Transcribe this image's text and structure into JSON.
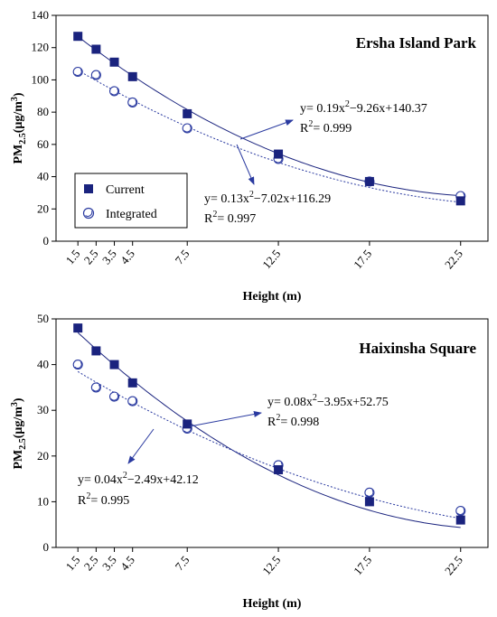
{
  "chart_data": [
    {
      "type": "scatter",
      "title": "Ersha Island Park",
      "xlabel": "Height (m)",
      "ylabel_main": "PM",
      "ylabel_sub": "2.5",
      "ylabel_unit": "(μg/m",
      "ylabel_sup": "3",
      "ylabel_close": ")",
      "xticks": [
        "1.5",
        "2.5",
        "3.5",
        "4.5",
        "7.5",
        "12.5",
        "17.5",
        "22.5"
      ],
      "ylim": [
        0,
        140
      ],
      "yticks": [
        "0",
        "20",
        "40",
        "60",
        "80",
        "100",
        "120",
        "140"
      ],
      "legend": {
        "current": "Current",
        "integrated": "Integrated"
      },
      "series": [
        {
          "name": "Current",
          "x": [
            1.5,
            2.5,
            3.5,
            4.5,
            7.5,
            12.5,
            17.5,
            22.5
          ],
          "y": [
            127,
            119,
            111,
            102,
            79,
            54,
            37,
            25
          ],
          "fit": [
            0.19,
            -9.26,
            140.37
          ]
        },
        {
          "name": "Integrated",
          "x": [
            1.5,
            2.5,
            3.5,
            4.5,
            7.5,
            12.5,
            17.5,
            22.5
          ],
          "y": [
            105,
            103,
            93,
            86,
            70,
            51,
            37,
            28
          ],
          "fit": [
            0.13,
            -7.02,
            116.29
          ]
        }
      ],
      "eq_current": {
        "a": "y= 0.19x",
        "b": "−9.26x+140.37",
        "r": "R",
        "rv": "= 0.999"
      },
      "eq_integrated": {
        "a": "y= 0.13x",
        "b": "−7.02x+116.29",
        "r": "R",
        "rv": "= 0.997"
      }
    },
    {
      "type": "scatter",
      "title": "Haixinsha Square",
      "xlabel": "Height (m)",
      "ylabel_main": "PM",
      "ylabel_sub": "2.5",
      "ylabel_unit": "(μg/m",
      "ylabel_sup": "3",
      "ylabel_close": ")",
      "xticks": [
        "1.5",
        "2.5",
        "3.5",
        "4.5",
        "7.5",
        "12.5",
        "17.5",
        "22.5"
      ],
      "ylim": [
        0,
        50
      ],
      "yticks": [
        "0",
        "10",
        "20",
        "30",
        "40",
        "50"
      ],
      "series": [
        {
          "name": "Current",
          "x": [
            1.5,
            2.5,
            3.5,
            4.5,
            7.5,
            12.5,
            17.5,
            22.5
          ],
          "y": [
            48,
            43,
            40,
            36,
            27,
            17,
            10,
            6
          ],
          "fit": [
            0.08,
            -3.95,
            52.75
          ]
        },
        {
          "name": "Integrated",
          "x": [
            1.5,
            2.5,
            3.5,
            4.5,
            7.5,
            12.5,
            17.5,
            22.5
          ],
          "y": [
            40,
            35,
            33,
            32,
            26,
            18,
            12,
            8
          ],
          "fit": [
            0.04,
            -2.49,
            42.12
          ]
        }
      ],
      "eq_current": {
        "a": "y= 0.08x",
        "b": "−3.95x+52.75",
        "r": "R",
        "rv": "= 0.998"
      },
      "eq_integrated": {
        "a": "y= 0.04x",
        "b": "−2.49x+42.12",
        "r": "R",
        "rv": "= 0.995"
      }
    }
  ],
  "colors": {
    "current": "#1a237e",
    "integrated": "#2a3aa0",
    "axis": "#000000"
  }
}
